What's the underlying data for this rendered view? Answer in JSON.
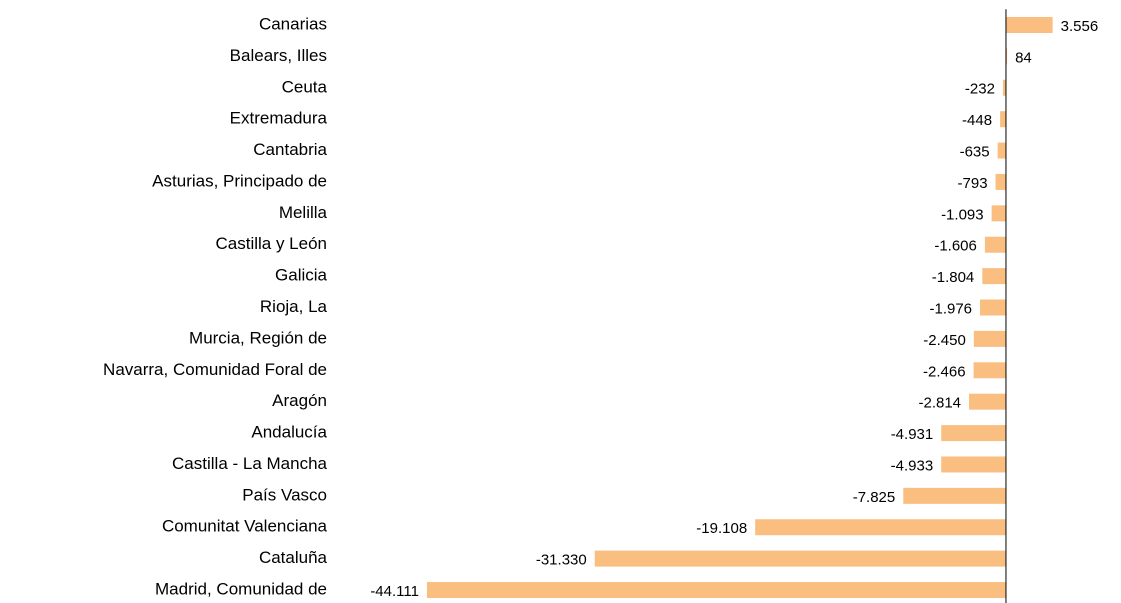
{
  "chart_data": {
    "type": "hbar",
    "categories": [
      "Canarias",
      "Balears, Illes",
      "Ceuta",
      "Extremadura",
      "Cantabria",
      "Asturias, Principado de",
      "Melilla",
      "Castilla y León",
      "Galicia",
      "Rioja, La",
      "Murcia, Región de",
      "Navarra, Comunidad Foral de",
      "Aragón",
      "Andalucía",
      "Castilla - La Mancha",
      "País Vasco",
      "Comunitat Valenciana",
      "Cataluña",
      "Madrid, Comunidad de"
    ],
    "values": [
      3556,
      84,
      -232,
      -448,
      -635,
      -793,
      -1093,
      -1606,
      -1804,
      -1976,
      -2450,
      -2466,
      -2814,
      -4931,
      -4933,
      -7825,
      -19108,
      -31330,
      -44111
    ],
    "value_labels": [
      "3.556",
      "84",
      "-232",
      "-448",
      "-635",
      "-793",
      "-1.093",
      "-1.606",
      "-1.804",
      "-1.976",
      "-2.450",
      "-2.466",
      "-2.814",
      "-4.931",
      "-4.933",
      "-7.825",
      "-19.108",
      "-31.330",
      "-44.111"
    ],
    "color": "#fabf80",
    "xlim": [
      -45000,
      5000
    ]
  }
}
